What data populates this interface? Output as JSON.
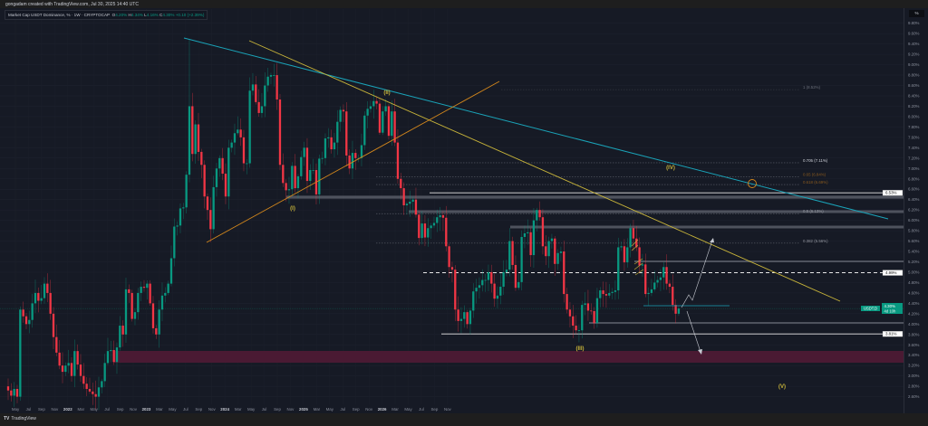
{
  "header": {
    "attribution": "gongadam created with TradingView.com, Jul 30, 2025 14:40 UTC",
    "symbol": "Market Cap USDT Dominance, % · 1W · CRYPTOCAP",
    "o_label": "O",
    "o": "4.20%",
    "h_label": "H",
    "h": "4.34%",
    "l_label": "L",
    "l": "4.16%",
    "c_label": "C",
    "c": "4.30%",
    "change": "+0.10 (+2.39%)"
  },
  "axis_unit": "%",
  "footer": {
    "logo_mark": "TV",
    "logo_text": "TradingView"
  },
  "price_tag": {
    "symbol": "USDT.D",
    "value": "4.30%",
    "countdown": "4d 10h"
  },
  "level_labels": [
    {
      "text": "6.53%",
      "value": 6.53
    },
    {
      "text": "4.99%",
      "value": 4.99
    },
    {
      "text": "3.81%",
      "value": 3.81
    }
  ],
  "fib_levels": [
    {
      "label": "1 (8.52%)",
      "value": 8.52,
      "color": "#6b6f7a"
    },
    {
      "label": "0.705 (7.11%)",
      "value": 7.11,
      "color": "#d1d4dc"
    },
    {
      "label": "0.65 (6.84%)",
      "value": 6.84,
      "color": "#8a5a1e"
    },
    {
      "label": "0.618 (6.69%)",
      "value": 6.69,
      "color": "#8a5a1e"
    },
    {
      "label": "0.5 (6.13%)",
      "value": 6.13,
      "color": "#9598a1"
    },
    {
      "label": "0.382 (5.56%)",
      "value": 5.56,
      "color": "#9598a1"
    }
  ],
  "waves": [
    {
      "label": "(I)"
    },
    {
      "label": "(II)"
    },
    {
      "label": "(III)"
    },
    {
      "label": "(IV)"
    },
    {
      "label": "(V)"
    }
  ],
  "colors": {
    "up": "#089981",
    "down": "#f23645",
    "trend_cyan": "#1aa3b8",
    "trend_yellow": "#c9b53a",
    "trend_orange": "#d2861c",
    "zone": "#4a1a33",
    "background": "#161a25"
  },
  "chart_data": {
    "type": "candlestick",
    "timeframe": "1W",
    "first_week": "2021-04-26",
    "last_week": "2025-07-28",
    "ylim": [
      2.6,
      9.8
    ],
    "y_scale": "linear",
    "y_ticks": [
      "9.80%",
      "9.60%",
      "9.40%",
      "9.20%",
      "9.00%",
      "8.80%",
      "8.60%",
      "8.40%",
      "8.20%",
      "8.00%",
      "7.80%",
      "7.60%",
      "7.40%",
      "7.20%",
      "7.00%",
      "6.80%",
      "6.60%",
      "6.40%",
      "6.20%",
      "6.00%",
      "5.80%",
      "5.60%",
      "5.40%",
      "5.20%",
      "5.00%",
      "4.80%",
      "4.60%",
      "4.40%",
      "4.20%",
      "4.00%",
      "3.80%",
      "3.60%",
      "3.40%",
      "3.20%",
      "3.00%",
      "2.80%",
      "2.60%"
    ],
    "x_ticks": [
      {
        "label": "May",
        "year": false
      },
      {
        "label": "Jul",
        "year": false
      },
      {
        "label": "Sep",
        "year": false
      },
      {
        "label": "Nov",
        "year": false
      },
      {
        "label": "2022",
        "year": true
      },
      {
        "label": "Mar",
        "year": false
      },
      {
        "label": "May",
        "year": false
      },
      {
        "label": "Jul",
        "year": false
      },
      {
        "label": "Sep",
        "year": false
      },
      {
        "label": "Nov",
        "year": false
      },
      {
        "label": "2023",
        "year": true
      },
      {
        "label": "Mar",
        "year": false
      },
      {
        "label": "May",
        "year": false
      },
      {
        "label": "Jul",
        "year": false
      },
      {
        "label": "Sep",
        "year": false
      },
      {
        "label": "Nov",
        "year": false
      },
      {
        "label": "2024",
        "year": true
      },
      {
        "label": "Mar",
        "year": false
      },
      {
        "label": "May",
        "year": false
      },
      {
        "label": "Jul",
        "year": false
      },
      {
        "label": "Sep",
        "year": false
      },
      {
        "label": "Nov",
        "year": false
      },
      {
        "label": "2025",
        "year": true
      },
      {
        "label": "Mar",
        "year": false
      },
      {
        "label": "May",
        "year": false
      },
      {
        "label": "Jul",
        "year": false
      },
      {
        "label": "Sep",
        "year": false
      },
      {
        "label": "Nov",
        "year": false
      },
      {
        "label": "2026",
        "year": true
      },
      {
        "label": "Mar",
        "year": false
      },
      {
        "label": "May",
        "year": false
      },
      {
        "label": "Jul",
        "year": false
      },
      {
        "label": "Sep",
        "year": false
      },
      {
        "label": "Nov",
        "year": false
      }
    ],
    "weekly_close": [
      2.72,
      2.62,
      2.75,
      2.6,
      4.28,
      4.15,
      4.0,
      4.08,
      4.4,
      4.6,
      4.45,
      4.5,
      4.78,
      4.6,
      4.2,
      3.75,
      3.45,
      3.2,
      3.08,
      3.2,
      3.25,
      3.0,
      3.48,
      3.22,
      3.0,
      2.85,
      2.75,
      2.7,
      2.65,
      2.6,
      2.78,
      2.9,
      3.25,
      3.48,
      3.5,
      3.27,
      3.55,
      3.97,
      3.8,
      4.67,
      4.6,
      4.1,
      4.23,
      4.6,
      4.72,
      4.7,
      4.78,
      4.4,
      3.92,
      3.8,
      4.28,
      4.55,
      4.6,
      4.78,
      5.27,
      5.88,
      5.9,
      6.23,
      6.25,
      6.88,
      8.2,
      7.28,
      7.85,
      7.32,
      7.07,
      6.46,
      6.2,
      5.83,
      6.64,
      7.0,
      7.2,
      6.9,
      6.46,
      7.4,
      7.5,
      7.68,
      7.75,
      7.6,
      7.1,
      7.1,
      8.5,
      8.62,
      8.28,
      8.07,
      8.2,
      8.6,
      8.77,
      8.8,
      8.8,
      8.33,
      7.07,
      6.72,
      6.58,
      6.6,
      7.05,
      6.62,
      6.85,
      7.22,
      7.4,
      6.76,
      6.97,
      6.97,
      6.5,
      7.19,
      7.2,
      7.58,
      7.6,
      7.37,
      7.5,
      7.9,
      8.13,
      8.1,
      7.25,
      7.0,
      7.3,
      7.2,
      7.2,
      7.45,
      8.02,
      8.15,
      8.2,
      8.3,
      8.25,
      7.69,
      8.1,
      8.2,
      7.63,
      8.1,
      7.5,
      6.8,
      6.62,
      6.29,
      6.32,
      6.36,
      6.4,
      6.11,
      5.66,
      5.94,
      5.67,
      5.85,
      5.9,
      5.95,
      6.06,
      6.1,
      6.05,
      5.5,
      5.1,
      5.05,
      4.28,
      4.06,
      4.1,
      4.23,
      4.0,
      4.26,
      4.63,
      4.7,
      4.75,
      4.85,
      4.85,
      5.0,
      4.78,
      4.49,
      4.55,
      4.72,
      5.0,
      5.05,
      5.6,
      5.14,
      4.7,
      4.81,
      5.68,
      5.75,
      5.77,
      5.33,
      6.0,
      6.2,
      6.06,
      5.5,
      5.31,
      5.6,
      5.65,
      5.16,
      5.37,
      5.4,
      4.58,
      4.28,
      4.15,
      3.97,
      3.88,
      3.88,
      4.37,
      4.4,
      4.26,
      4.25,
      4.02,
      4.5,
      4.65,
      4.58,
      4.55,
      4.6,
      4.62,
      4.65,
      5.48,
      5.5,
      5.19,
      5.48,
      5.85,
      5.65,
      5.48,
      5.13,
      5.15,
      4.58,
      4.6,
      4.67,
      4.8,
      4.85,
      4.9,
      5.1,
      4.78,
      4.72,
      4.37,
      4.2,
      4.3
    ],
    "last_candle": {
      "open": 4.2,
      "high": 4.34,
      "low": 4.16,
      "close": 4.3
    }
  }
}
